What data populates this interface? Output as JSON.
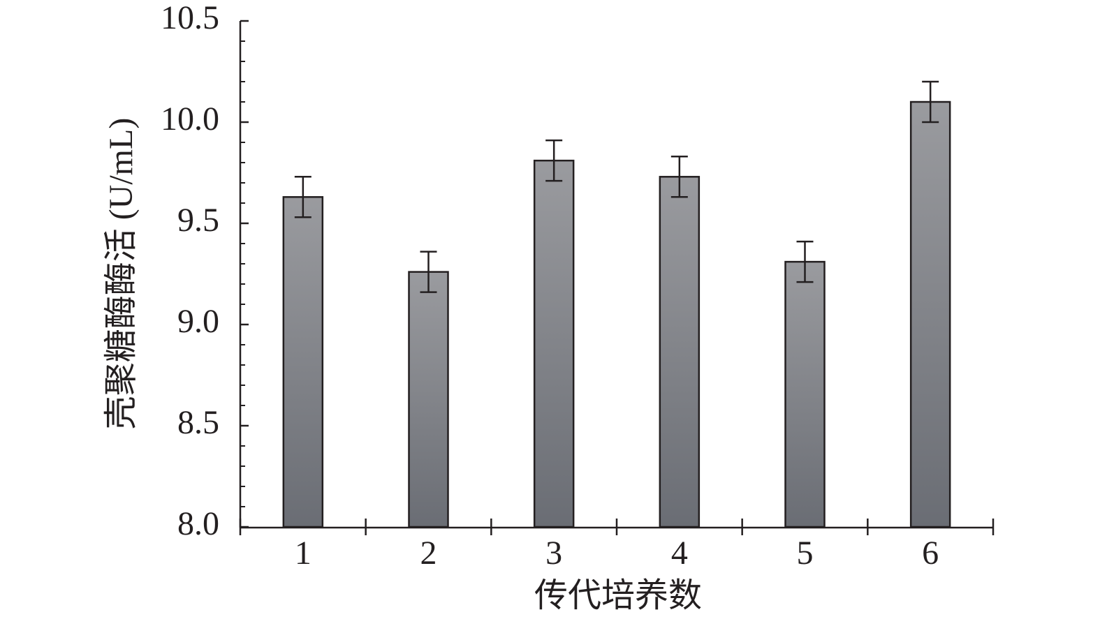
{
  "chart_data": {
    "type": "bar",
    "y_label": "壳聚糖酶酶活 (U/mL)",
    "x_label": "传代培养数",
    "categories": [
      "1",
      "2",
      "3",
      "4",
      "5",
      "6"
    ],
    "values": [
      9.63,
      9.26,
      9.81,
      9.73,
      9.31,
      10.1
    ],
    "errors": [
      0.1,
      0.1,
      0.1,
      0.1,
      0.1,
      0.1
    ],
    "color_top": "#9a9b9f",
    "color_bottom": "#6a6d74",
    "ylim": [
      8.0,
      10.5
    ],
    "yticks": [
      {
        "value": 8.0,
        "label": "8.0"
      },
      8.5,
      {
        "value": 9.0,
        "label": "9.0"
      },
      9.5,
      {
        "value": 10.0,
        "label": "10.0"
      },
      10.5
    ],
    "yminorticks": [
      8.1,
      8.2,
      8.3,
      8.4,
      8.6,
      8.7,
      8.8,
      8.9,
      9.1,
      9.2,
      9.3,
      9.4,
      9.6,
      9.7,
      9.8,
      9.9,
      10.1,
      10.2,
      10.3,
      10.4
    ],
    "grid": false
  }
}
